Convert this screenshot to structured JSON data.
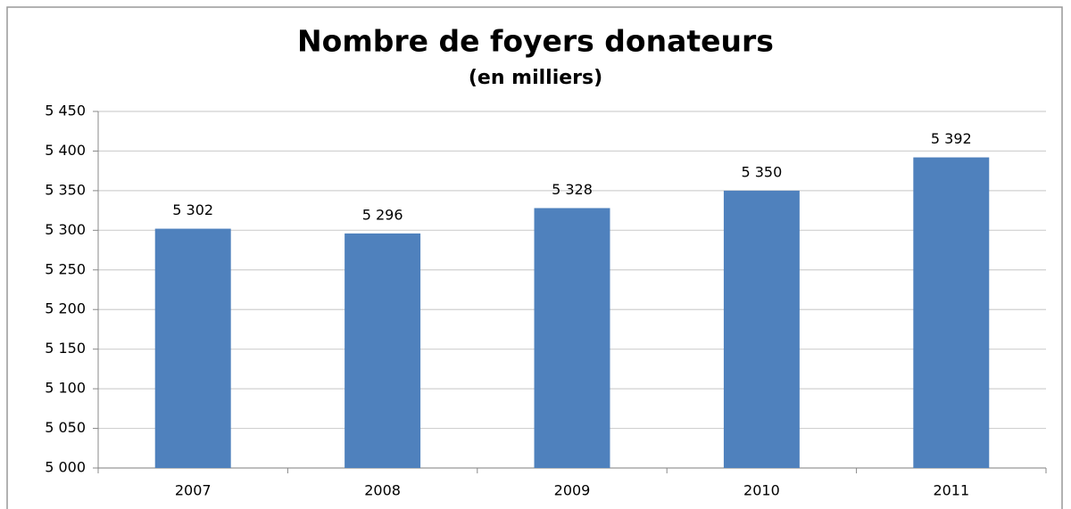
{
  "chart_data": {
    "type": "bar",
    "title": "Nombre de foyers donateurs",
    "subtitle": "(en milliers)",
    "categories": [
      "2007",
      "2008",
      "2009",
      "2010",
      "2011"
    ],
    "values": [
      5302,
      5296,
      5328,
      5350,
      5392
    ],
    "value_labels": [
      "5 302",
      "5 296",
      "5 328",
      "5 350",
      "5 392"
    ],
    "color": "#4f81bd",
    "ylim": [
      5000,
      5450
    ],
    "yticks": [
      {
        "value": 5000,
        "label": "5 000"
      },
      {
        "value": 5050,
        "label": "5 050"
      },
      {
        "value": 5100,
        "label": "5 100"
      },
      {
        "value": 5150,
        "label": "5 150"
      },
      {
        "value": 5200,
        "label": "5 200"
      },
      {
        "value": 5250,
        "label": "5 250"
      },
      {
        "value": 5300,
        "label": "5 300"
      },
      {
        "value": 5350,
        "label": "5 350"
      },
      {
        "value": 5400,
        "label": "5 400"
      },
      {
        "value": 5450,
        "label": "5 450"
      }
    ],
    "grid": true
  }
}
